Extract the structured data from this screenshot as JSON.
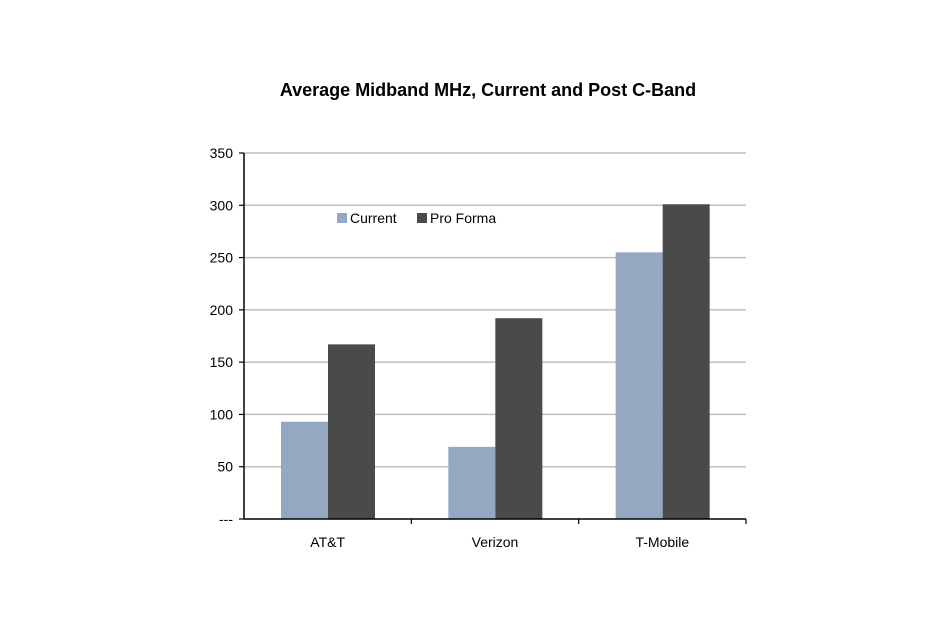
{
  "chart_data": {
    "type": "bar",
    "title": "Average Midband MHz, Current and Post C-Band",
    "xlabel": "",
    "ylabel": "",
    "categories": [
      "AT&T",
      "Verizon",
      "T-Mobile"
    ],
    "series": [
      {
        "name": "Current",
        "color": "#95a8c1",
        "values": [
          93,
          69,
          255
        ]
      },
      {
        "name": "Pro Forma",
        "color": "#4a4a4a",
        "values": [
          167,
          192,
          301
        ]
      }
    ],
    "ylim": [
      0,
      350
    ],
    "yticks": [
      0,
      50,
      100,
      150,
      200,
      250,
      300,
      350
    ],
    "ytick_labels": [
      "---",
      "50",
      "100",
      "150",
      "200",
      "250",
      "300",
      "350"
    ],
    "grid": true,
    "legend_position": "top-left inside plot"
  }
}
